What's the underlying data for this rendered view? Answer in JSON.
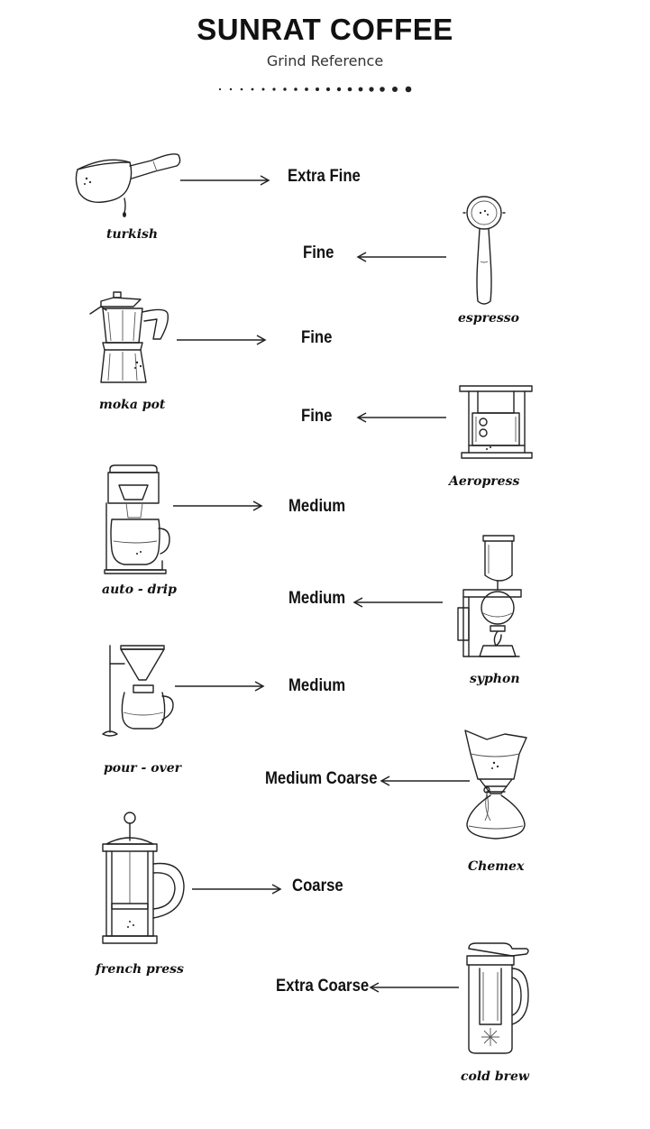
{
  "header": {
    "title": "SUNRAT COFFEE",
    "subtitle": "Grind Reference"
  },
  "methods": [
    {
      "id": "turkish",
      "label": "turkish",
      "grind": "Extra Fine",
      "icon": "turkish-pot-icon"
    },
    {
      "id": "espresso",
      "label": "espresso",
      "grind": "Fine",
      "icon": "portafilter-icon"
    },
    {
      "id": "moka",
      "label": "moka pot",
      "grind": "Fine",
      "icon": "moka-pot-icon"
    },
    {
      "id": "aeropress",
      "label": "Aeropress",
      "grind": "Fine",
      "icon": "aeropress-icon"
    },
    {
      "id": "autodrip",
      "label": "auto - drip",
      "grind": "Medium",
      "icon": "drip-machine-icon"
    },
    {
      "id": "syphon",
      "label": "syphon",
      "grind": "Medium",
      "icon": "syphon-icon"
    },
    {
      "id": "pourover",
      "label": "pour - over",
      "grind": "Medium",
      "icon": "pour-over-icon"
    },
    {
      "id": "chemex",
      "label": "Chemex",
      "grind": "Medium Coarse",
      "icon": "chemex-icon"
    },
    {
      "id": "frenchpress",
      "label": "french press",
      "grind": "Coarse",
      "icon": "french-press-icon"
    },
    {
      "id": "coldbrew",
      "label": "cold brew",
      "grind": "Extra Coarse",
      "icon": "cold-brew-pitcher-icon"
    }
  ]
}
